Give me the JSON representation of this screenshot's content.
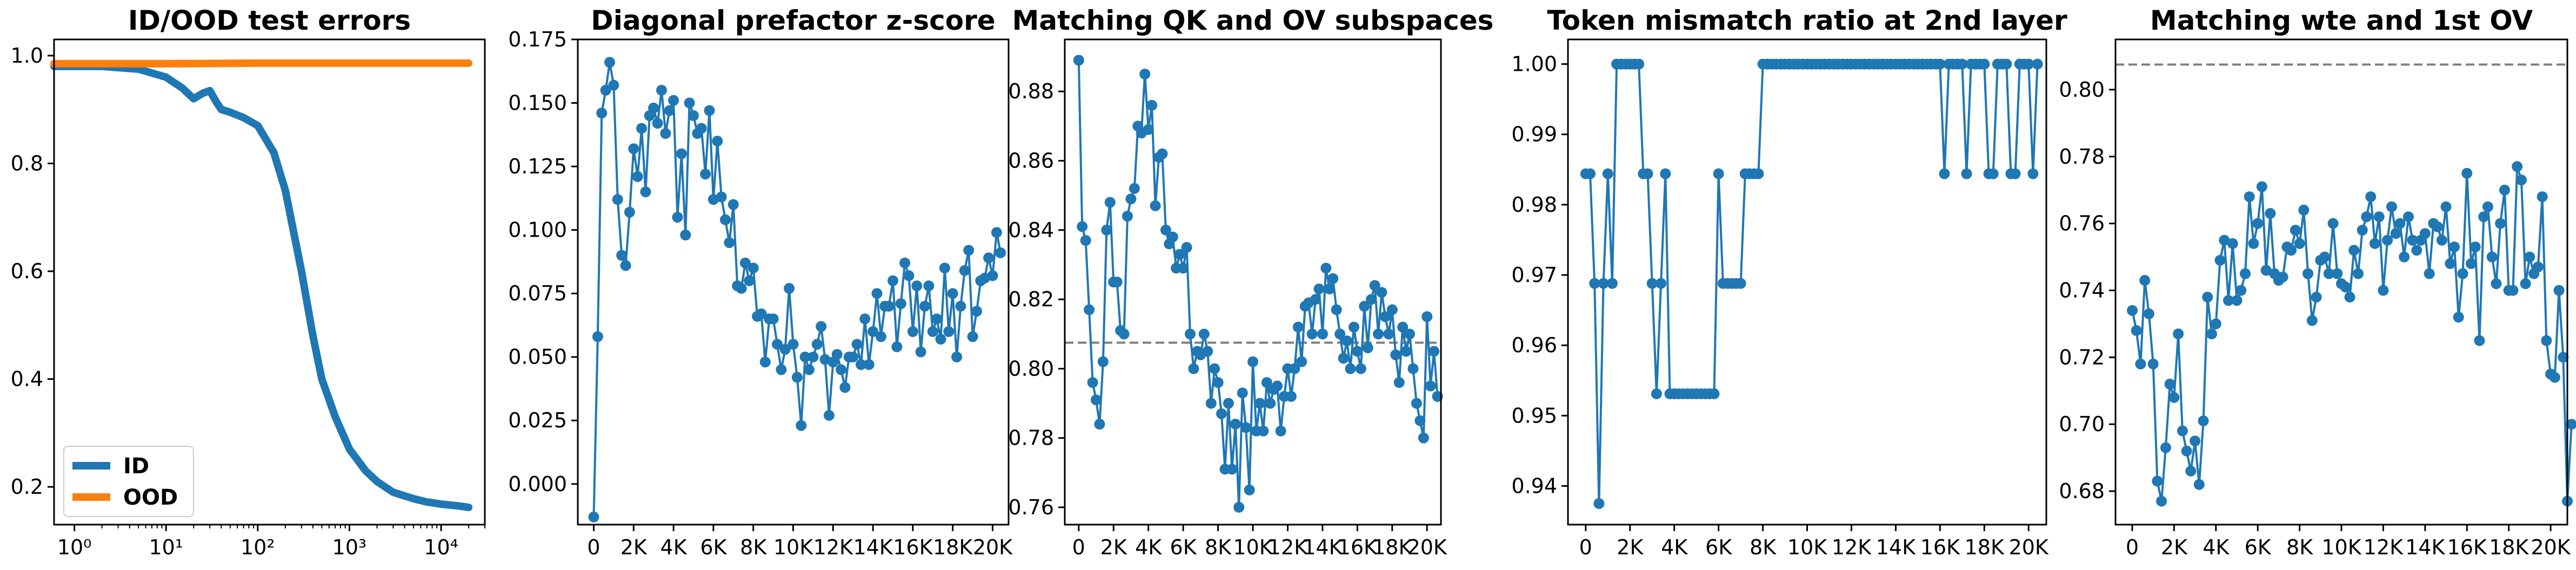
{
  "colors": {
    "blue": "#1f77b4",
    "orange": "#ff7f0e",
    "ref_line": "#808080"
  },
  "chart_data": [
    {
      "type": "line",
      "title": "ID/OOD test errors",
      "xscale": "log",
      "xlim": [
        0.6,
        30000
      ],
      "ylim": [
        0.13,
        1.03
      ],
      "xticks": [
        1,
        10,
        100,
        1000,
        10000
      ],
      "xtick_labels": [
        "10⁰",
        "10¹",
        "10²",
        "10³",
        "10⁴"
      ],
      "yticks": [
        0.2,
        0.4,
        0.6,
        0.8,
        1.0
      ],
      "ytick_labels": [
        "0.2",
        "0.4",
        "0.6",
        "0.8",
        "1.0"
      ],
      "legend": {
        "position": "lower-left",
        "entries": [
          "ID",
          "OOD"
        ]
      },
      "series": [
        {
          "name": "ID",
          "color": "#1f77b4",
          "x": [
            0.6,
            2,
            5,
            10,
            15,
            20,
            25,
            30,
            35,
            40,
            50,
            70,
            100,
            150,
            200,
            300,
            400,
            500,
            700,
            1000,
            1500,
            2000,
            3000,
            5000,
            7000,
            10000,
            15000,
            20000
          ],
          "y": [
            0.98,
            0.98,
            0.975,
            0.96,
            0.94,
            0.92,
            0.93,
            0.935,
            0.915,
            0.9,
            0.895,
            0.885,
            0.87,
            0.82,
            0.75,
            0.6,
            0.48,
            0.4,
            0.33,
            0.27,
            0.23,
            0.21,
            0.19,
            0.178,
            0.172,
            0.168,
            0.165,
            0.162
          ]
        },
        {
          "name": "OOD",
          "color": "#ff7f0e",
          "x": [
            0.6,
            10,
            100,
            1000,
            10000,
            20000
          ],
          "y": [
            0.985,
            0.985,
            0.986,
            0.986,
            0.986,
            0.986
          ]
        }
      ]
    },
    {
      "type": "line",
      "title": "Diagonal prefactor z-score",
      "xlim": [
        -800,
        20800
      ],
      "ylim": [
        -0.016,
        0.175
      ],
      "xticks": [
        0,
        2000,
        4000,
        6000,
        8000,
        10000,
        12000,
        14000,
        16000,
        18000,
        20000
      ],
      "xtick_labels": [
        "0",
        "2K",
        "4K",
        "6K",
        "8K",
        "10K",
        "12K",
        "14K",
        "16K",
        "18K",
        "20K"
      ],
      "yticks": [
        0,
        0.025,
        0.05,
        0.075,
        0.1,
        0.125,
        0.15,
        0.175
      ],
      "ytick_labels": [
        "0.000",
        "0.025",
        "0.050",
        "0.075",
        "0.100",
        "0.125",
        "0.150",
        "0.175"
      ],
      "series": [
        {
          "color": "#1f77b4",
          "x_start": 0,
          "x_step": 200,
          "values": [
            -0.013,
            0.058,
            0.146,
            0.155,
            0.166,
            0.157,
            0.112,
            0.09,
            0.086,
            0.107,
            0.132,
            0.121,
            0.14,
            0.115,
            0.145,
            0.148,
            0.142,
            0.155,
            0.138,
            0.147,
            0.151,
            0.105,
            0.13,
            0.098,
            0.15,
            0.145,
            0.138,
            0.14,
            0.122,
            0.147,
            0.112,
            0.135,
            0.113,
            0.104,
            0.095,
            0.11,
            0.078,
            0.077,
            0.087,
            0.08,
            0.085,
            0.066,
            0.067,
            0.048,
            0.065,
            0.065,
            0.055,
            0.045,
            0.053,
            0.077,
            0.055,
            0.042,
            0.023,
            0.05,
            0.045,
            0.05,
            0.055,
            0.062,
            0.049,
            0.027,
            0.048,
            0.051,
            0.045,
            0.038,
            0.05,
            0.05,
            0.055,
            0.047,
            0.065,
            0.047,
            0.06,
            0.075,
            0.058,
            0.07,
            0.07,
            0.08,
            0.054,
            0.071,
            0.087,
            0.082,
            0.06,
            0.078,
            0.052,
            0.07,
            0.078,
            0.06,
            0.065,
            0.057,
            0.085,
            0.06,
            0.075,
            0.05,
            0.07,
            0.084,
            0.092,
            0.058,
            0.068,
            0.08,
            0.081,
            0.089,
            0.082,
            0.099,
            0.091
          ]
        }
      ]
    },
    {
      "type": "line",
      "title": "Matching QK and OV subspaces",
      "xlim": [
        -800,
        20800
      ],
      "ylim": [
        0.755,
        0.895
      ],
      "xticks": [
        0,
        2000,
        4000,
        6000,
        8000,
        10000,
        12000,
        14000,
        16000,
        18000,
        20000
      ],
      "xtick_labels": [
        "0",
        "2K",
        "4K",
        "6K",
        "8K",
        "10K",
        "12K",
        "14K",
        "16K",
        "18K",
        "20K"
      ],
      "yticks": [
        0.76,
        0.78,
        0.8,
        0.82,
        0.84,
        0.86,
        0.88
      ],
      "ytick_labels": [
        "0.76",
        "0.78",
        "0.80",
        "0.82",
        "0.84",
        "0.86",
        "0.88"
      ],
      "reference_line": 0.8075,
      "series": [
        {
          "color": "#1f77b4",
          "x_start": 0,
          "x_step": 200,
          "values": [
            0.889,
            0.841,
            0.837,
            0.817,
            0.796,
            0.791,
            0.784,
            0.802,
            0.84,
            0.848,
            0.825,
            0.825,
            0.811,
            0.81,
            0.844,
            0.849,
            0.852,
            0.87,
            0.868,
            0.885,
            0.869,
            0.876,
            0.847,
            0.861,
            0.862,
            0.84,
            0.836,
            0.838,
            0.829,
            0.833,
            0.829,
            0.835,
            0.81,
            0.8,
            0.805,
            0.804,
            0.81,
            0.805,
            0.79,
            0.8,
            0.796,
            0.787,
            0.771,
            0.79,
            0.771,
            0.784,
            0.76,
            0.793,
            0.783,
            0.765,
            0.802,
            0.782,
            0.79,
            0.782,
            0.796,
            0.79,
            0.794,
            0.795,
            0.782,
            0.792,
            0.8,
            0.792,
            0.8,
            0.812,
            0.802,
            0.818,
            0.819,
            0.81,
            0.82,
            0.823,
            0.81,
            0.829,
            0.823,
            0.826,
            0.817,
            0.81,
            0.803,
            0.808,
            0.8,
            0.812,
            0.805,
            0.8,
            0.818,
            0.806,
            0.82,
            0.824,
            0.81,
            0.822,
            0.815,
            0.81,
            0.817,
            0.804,
            0.796,
            0.812,
            0.805,
            0.81,
            0.8,
            0.79,
            0.785,
            0.78,
            0.815,
            0.795,
            0.805,
            0.792
          ]
        }
      ]
    },
    {
      "type": "line",
      "title": "Token mismatch ratio at 2nd layer",
      "xlim": [
        -800,
        20800
      ],
      "ylim": [
        0.9345,
        1.0035
      ],
      "xticks": [
        0,
        2000,
        4000,
        6000,
        8000,
        10000,
        12000,
        14000,
        16000,
        18000,
        20000
      ],
      "xtick_labels": [
        "0",
        "2K",
        "4K",
        "6K",
        "8K",
        "10K",
        "12K",
        "14K",
        "16K",
        "18K",
        "20K"
      ],
      "yticks": [
        0.94,
        0.95,
        0.96,
        0.97,
        0.98,
        0.99,
        1.0
      ],
      "ytick_labels": [
        "0.94",
        "0.95",
        "0.96",
        "0.97",
        "0.98",
        "0.99",
        "1.00"
      ],
      "series": [
        {
          "color": "#1f77b4",
          "x_start": 0,
          "x_step": 200,
          "values": [
            0.9844,
            0.9844,
            0.9688,
            0.9375,
            0.9688,
            0.9844,
            0.9688,
            1.0,
            1.0,
            1.0,
            1.0,
            1.0,
            1.0,
            0.9844,
            0.9844,
            0.9688,
            0.9531,
            0.9688,
            0.9844,
            0.9531,
            0.9531,
            0.9531,
            0.9531,
            0.9531,
            0.9531,
            0.9531,
            0.9531,
            0.9531,
            0.9531,
            0.9531,
            0.9844,
            0.9688,
            0.9688,
            0.9688,
            0.9688,
            0.9688,
            0.9844,
            0.9844,
            0.9844,
            0.9844,
            1.0,
            1.0,
            1.0,
            1.0,
            1.0,
            1.0,
            1.0,
            1.0,
            1.0,
            1.0,
            1.0,
            1.0,
            1.0,
            1.0,
            1.0,
            1.0,
            1.0,
            1.0,
            1.0,
            1.0,
            1.0,
            1.0,
            1.0,
            1.0,
            1.0,
            1.0,
            1.0,
            1.0,
            1.0,
            1.0,
            1.0,
            1.0,
            1.0,
            1.0,
            1.0,
            1.0,
            1.0,
            1.0,
            1.0,
            1.0,
            1.0,
            0.9844,
            1.0,
            1.0,
            1.0,
            1.0,
            0.9844,
            1.0,
            1.0,
            1.0,
            1.0,
            0.9844,
            0.9844,
            1.0,
            1.0,
            1.0,
            0.9844,
            0.9844,
            1.0,
            1.0,
            1.0,
            0.9844,
            1.0
          ]
        }
      ]
    },
    {
      "type": "line",
      "title": "Matching wte and 1st OV",
      "xlim": [
        -800,
        20800
      ],
      "ylim": [
        0.67,
        0.815
      ],
      "xticks": [
        0,
        2000,
        4000,
        6000,
        8000,
        10000,
        12000,
        14000,
        16000,
        18000,
        20000
      ],
      "xtick_labels": [
        "0",
        "2K",
        "4K",
        "6K",
        "8K",
        "10K",
        "12K",
        "14K",
        "16K",
        "18K",
        "20K"
      ],
      "yticks": [
        0.68,
        0.7,
        0.72,
        0.74,
        0.76,
        0.78,
        0.8
      ],
      "ytick_labels": [
        "0.68",
        "0.70",
        "0.72",
        "0.74",
        "0.76",
        "0.78",
        "0.80"
      ],
      "reference_line": 0.8075,
      "series": [
        {
          "color": "#1f77b4",
          "x_start": 0,
          "x_step": 200,
          "values": [
            0.734,
            0.728,
            0.718,
            0.743,
            0.733,
            0.718,
            0.683,
            0.677,
            0.693,
            0.712,
            0.708,
            0.727,
            0.698,
            0.692,
            0.686,
            0.695,
            0.682,
            0.701,
            0.738,
            0.727,
            0.73,
            0.749,
            0.755,
            0.737,
            0.754,
            0.737,
            0.74,
            0.745,
            0.768,
            0.754,
            0.76,
            0.771,
            0.746,
            0.763,
            0.745,
            0.743,
            0.744,
            0.753,
            0.752,
            0.758,
            0.754,
            0.764,
            0.745,
            0.731,
            0.738,
            0.749,
            0.75,
            0.745,
            0.76,
            0.745,
            0.742,
            0.741,
            0.738,
            0.752,
            0.745,
            0.758,
            0.762,
            0.768,
            0.754,
            0.762,
            0.74,
            0.755,
            0.765,
            0.757,
            0.76,
            0.75,
            0.762,
            0.755,
            0.752,
            0.755,
            0.757,
            0.745,
            0.76,
            0.759,
            0.755,
            0.765,
            0.748,
            0.753,
            0.732,
            0.745,
            0.775,
            0.748,
            0.753,
            0.725,
            0.762,
            0.765,
            0.75,
            0.742,
            0.76,
            0.77,
            0.74,
            0.74,
            0.777,
            0.773,
            0.742,
            0.75,
            0.745,
            0.747,
            0.768,
            0.725,
            0.715,
            0.714,
            0.74,
            0.72,
            0.677,
            0.7
          ]
        }
      ]
    }
  ]
}
